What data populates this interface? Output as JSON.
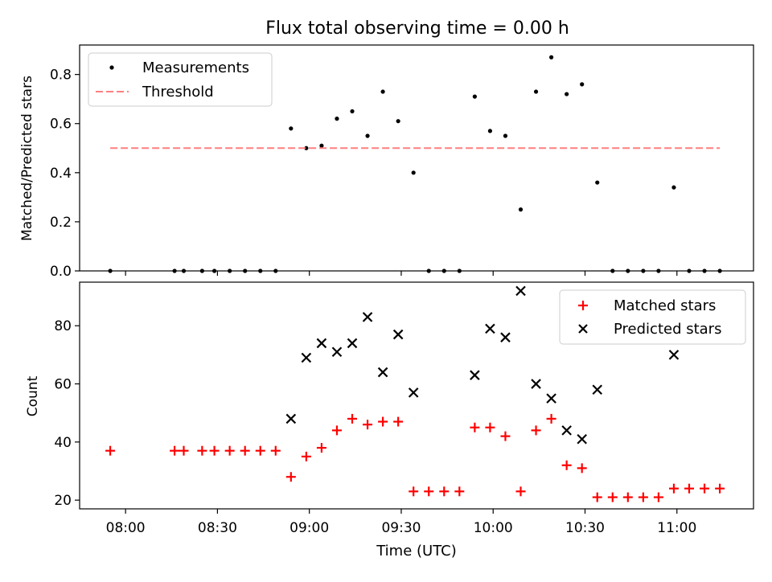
{
  "title": "Flux total observing time = 0.00 h",
  "xlabel": "Time (UTC)",
  "x_ticks": [
    "08:00",
    "08:30",
    "09:00",
    "09:30",
    "10:00",
    "10:30",
    "11:00"
  ],
  "colors": {
    "matched": "#ff0000",
    "predicted": "#000000",
    "threshold": "#ff7f7f",
    "measurements": "#000000"
  },
  "chart_data": [
    {
      "type": "scatter",
      "ylabel": "Matched/Predicted stars",
      "ylim": [
        0,
        0.92
      ],
      "yticks": [
        0.0,
        0.2,
        0.4,
        0.6,
        0.8
      ],
      "ytick_labels": [
        "0.0",
        "0.2",
        "0.4",
        "0.6",
        "0.8"
      ],
      "legend_position": "top-left",
      "series": [
        {
          "name": "Measurements",
          "marker": "dot",
          "points": [
            [
              "07:55",
              0.0
            ],
            [
              "08:16",
              0.0
            ],
            [
              "08:19",
              0.0
            ],
            [
              "08:25",
              0.0
            ],
            [
              "08:29",
              0.0
            ],
            [
              "08:34",
              0.0
            ],
            [
              "08:39",
              0.0
            ],
            [
              "08:44",
              0.0
            ],
            [
              "08:49",
              0.0
            ],
            [
              "08:54",
              0.58
            ],
            [
              "08:59",
              0.5
            ],
            [
              "09:04",
              0.51
            ],
            [
              "09:09",
              0.62
            ],
            [
              "09:14",
              0.65
            ],
            [
              "09:19",
              0.55
            ],
            [
              "09:24",
              0.73
            ],
            [
              "09:29",
              0.61
            ],
            [
              "09:34",
              0.4
            ],
            [
              "09:39",
              0.0
            ],
            [
              "09:44",
              0.0
            ],
            [
              "09:49",
              0.0
            ],
            [
              "09:54",
              0.71
            ],
            [
              "09:59",
              0.57
            ],
            [
              "10:04",
              0.55
            ],
            [
              "10:09",
              0.25
            ],
            [
              "10:14",
              0.73
            ],
            [
              "10:19",
              0.87
            ],
            [
              "10:24",
              0.72
            ],
            [
              "10:29",
              0.76
            ],
            [
              "10:34",
              0.36
            ],
            [
              "10:39",
              0.0
            ],
            [
              "10:44",
              0.0
            ],
            [
              "10:49",
              0.0
            ],
            [
              "10:54",
              0.0
            ],
            [
              "10:59",
              0.34
            ],
            [
              "11:04",
              0.0
            ],
            [
              "11:09",
              0.0
            ],
            [
              "11:14",
              0.0
            ]
          ]
        },
        {
          "name": "Threshold",
          "type": "line",
          "style": "dashed",
          "points": [
            [
              "07:55",
              0.5
            ],
            [
              "11:14",
              0.5
            ]
          ]
        }
      ]
    },
    {
      "type": "scatter",
      "ylabel": "Count",
      "ylim": [
        17,
        95
      ],
      "yticks": [
        20,
        40,
        60,
        80
      ],
      "ytick_labels": [
        "20",
        "40",
        "60",
        "80"
      ],
      "legend_position": "top-right",
      "series": [
        {
          "name": "Matched stars",
          "marker": "plus",
          "points": [
            [
              "07:55",
              37
            ],
            [
              "08:16",
              37
            ],
            [
              "08:19",
              37
            ],
            [
              "08:25",
              37
            ],
            [
              "08:29",
              37
            ],
            [
              "08:34",
              37
            ],
            [
              "08:39",
              37
            ],
            [
              "08:44",
              37
            ],
            [
              "08:49",
              37
            ],
            [
              "08:54",
              28
            ],
            [
              "08:59",
              35
            ],
            [
              "09:04",
              38
            ],
            [
              "09:09",
              44
            ],
            [
              "09:14",
              48
            ],
            [
              "09:19",
              46
            ],
            [
              "09:24",
              47
            ],
            [
              "09:29",
              47
            ],
            [
              "09:34",
              23
            ],
            [
              "09:39",
              23
            ],
            [
              "09:44",
              23
            ],
            [
              "09:49",
              23
            ],
            [
              "09:54",
              45
            ],
            [
              "09:59",
              45
            ],
            [
              "10:04",
              42
            ],
            [
              "10:09",
              23
            ],
            [
              "10:14",
              44
            ],
            [
              "10:19",
              48
            ],
            [
              "10:24",
              32
            ],
            [
              "10:29",
              31
            ],
            [
              "10:34",
              21
            ],
            [
              "10:39",
              21
            ],
            [
              "10:44",
              21
            ],
            [
              "10:49",
              21
            ],
            [
              "10:54",
              21
            ],
            [
              "10:59",
              24
            ],
            [
              "11:04",
              24
            ],
            [
              "11:09",
              24
            ],
            [
              "11:14",
              24
            ]
          ]
        },
        {
          "name": "Predicted stars",
          "marker": "x",
          "points": [
            [
              "08:54",
              48
            ],
            [
              "08:59",
              69
            ],
            [
              "09:04",
              74
            ],
            [
              "09:09",
              71
            ],
            [
              "09:14",
              74
            ],
            [
              "09:19",
              83
            ],
            [
              "09:24",
              64
            ],
            [
              "09:29",
              77
            ],
            [
              "09:34",
              57
            ],
            [
              "09:54",
              63
            ],
            [
              "09:59",
              79
            ],
            [
              "10:04",
              76
            ],
            [
              "10:09",
              92
            ],
            [
              "10:14",
              60
            ],
            [
              "10:19",
              55
            ],
            [
              "10:24",
              44
            ],
            [
              "10:29",
              41
            ],
            [
              "10:34",
              58
            ],
            [
              "10:59",
              70
            ]
          ]
        }
      ]
    }
  ]
}
